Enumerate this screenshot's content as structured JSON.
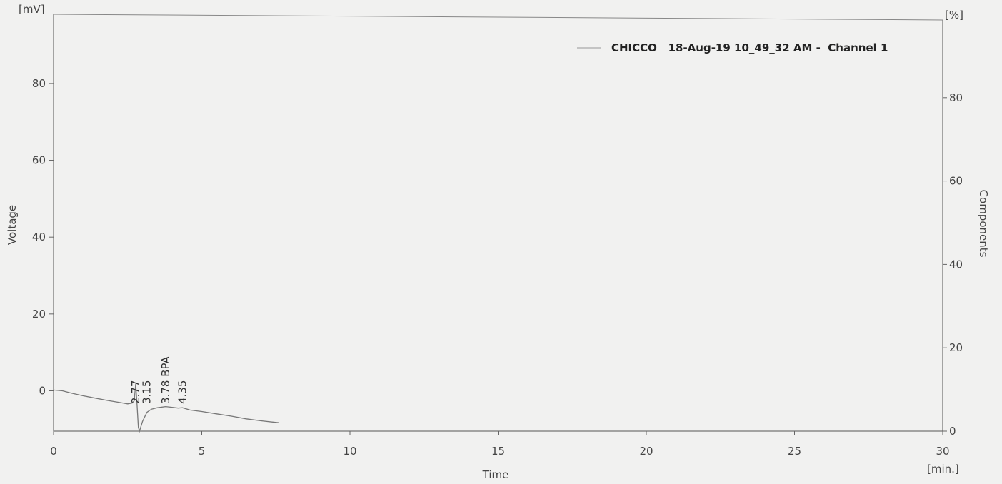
{
  "chart_data": {
    "type": "line",
    "legend": "CHICCO   18-Aug-19 10_49_32 AM -  Channel 1",
    "legend_position": "top-right",
    "grid": false,
    "xlabel": "Time",
    "x_unit": "[min.]",
    "ylabel": "Voltage",
    "y_unit": "[mV]",
    "y2label": "Components",
    "y2_unit": "[%]",
    "xlim": [
      0,
      30
    ],
    "ylim": [
      -10.5,
      98
    ],
    "y2lim": [
      0,
      100
    ],
    "x_ticks": [
      "0",
      "5",
      "10",
      "15",
      "20",
      "25",
      "30"
    ],
    "y_ticks": [
      "0",
      "20",
      "40",
      "60",
      "80"
    ],
    "y2_ticks": [
      "0",
      "20",
      "40",
      "60",
      "80"
    ],
    "series": [
      {
        "x": [
          0,
          0.3,
          0.6,
          1.0,
          1.4,
          1.8,
          2.2,
          2.5,
          2.65,
          2.72,
          2.77,
          2.82,
          2.86,
          2.9,
          3.0,
          3.15,
          3.3,
          3.5,
          3.78,
          4.0,
          4.2,
          4.35,
          4.6,
          5.0,
          5.5,
          6.0,
          6.5,
          7.0,
          7.6
        ],
        "y": [
          0.2,
          0.0,
          -0.6,
          -1.3,
          -1.9,
          -2.5,
          -3.0,
          -3.4,
          -3.2,
          -2.6,
          1.8,
          -4.0,
          -9.5,
          -10.5,
          -8.0,
          -5.6,
          -4.8,
          -4.4,
          -4.1,
          -4.3,
          -4.5,
          -4.4,
          -5.0,
          -5.4,
          -6.0,
          -6.6,
          -7.3,
          -7.8,
          -8.3
        ]
      }
    ],
    "peaks": [
      {
        "x": 2.77,
        "label": "2.77"
      },
      {
        "x": 3.15,
        "label": "3.15"
      },
      {
        "x": 3.78,
        "label": "3.78 BPA"
      },
      {
        "x": 4.35,
        "label": "4.35"
      }
    ]
  }
}
